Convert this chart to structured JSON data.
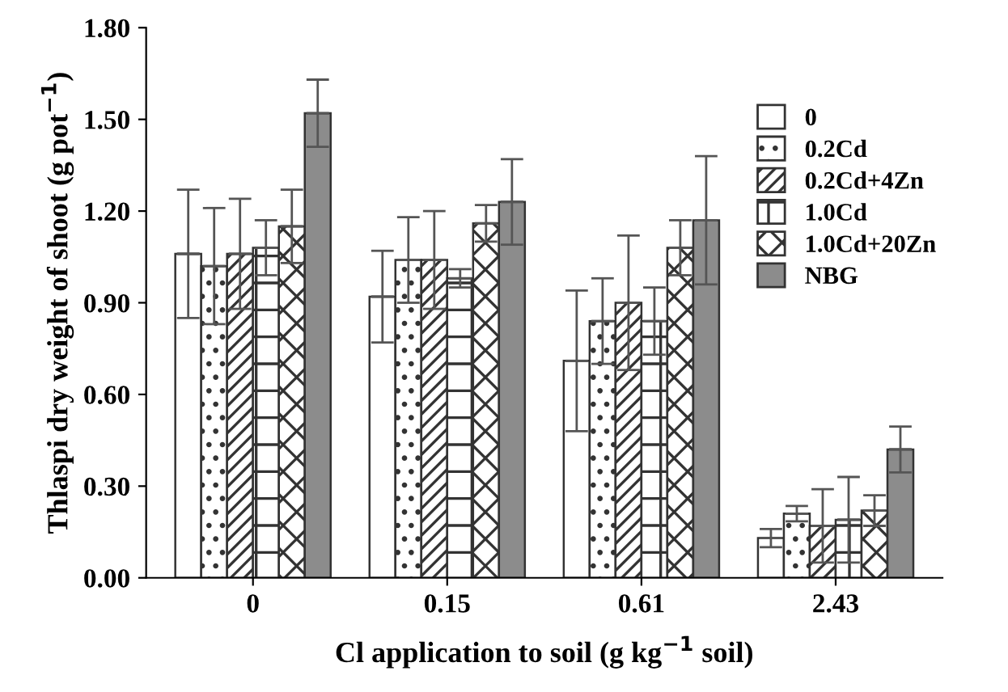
{
  "chart_data": {
    "type": "bar",
    "xlabel": "Cl application to soil (g kg$^{−1}$ soil)",
    "ylabel": "Thlaspi dry weight of shoot (g pot$^{−1}$)",
    "categories": [
      "0",
      "0.15",
      "0.61",
      "2.43"
    ],
    "series": [
      {
        "name": "0",
        "color": "#ffffff",
        "values": [
          1.06,
          0.92,
          0.71,
          0.13
        ],
        "errors": [
          0.21,
          0.15,
          0.23,
          0.03
        ]
      },
      {
        "name": "0.2Cd",
        "color": "#333333",
        "values": [
          1.02,
          1.04,
          0.84,
          0.21
        ],
        "errors": [
          0.19,
          0.14,
          0.14,
          0.025
        ]
      },
      {
        "name": "0.2Cd+4Zn",
        "color": "#333333",
        "values": [
          1.06,
          1.04,
          0.9,
          0.17
        ],
        "errors": [
          0.18,
          0.16,
          0.22,
          0.12
        ]
      },
      {
        "name": "1.0Cd",
        "color": "#333333",
        "values": [
          1.08,
          0.98,
          0.84,
          0.19
        ],
        "errors": [
          0.09,
          0.03,
          0.11,
          0.14
        ]
      },
      {
        "name": "1.0Cd+20Zn",
        "color": "#333333",
        "values": [
          1.15,
          1.16,
          1.08,
          0.22
        ],
        "errors": [
          0.12,
          0.06,
          0.09,
          0.05
        ]
      },
      {
        "name": "NBG",
        "color": "#8c8c8c",
        "values": [
          1.52,
          1.23,
          1.17,
          0.42
        ],
        "errors": [
          0.11,
          0.14,
          0.21,
          0.075
        ]
      }
    ],
    "ylim": [
      0,
      1.8
    ],
    "yticks": [
      {
        "value": 0,
        "label": "0.00"
      },
      {
        "value": 0.3,
        "label": "0.30"
      },
      {
        "value": 0.6,
        "label": "0.60"
      },
      {
        "value": 0.9,
        "label": "0.90"
      },
      {
        "value": 1.2,
        "label": "1.20"
      },
      {
        "value": 1.5,
        "label": "1.50"
      },
      {
        "value": 1.8,
        "label": "1.80"
      }
    ],
    "legend": "top right",
    "grid": false
  }
}
